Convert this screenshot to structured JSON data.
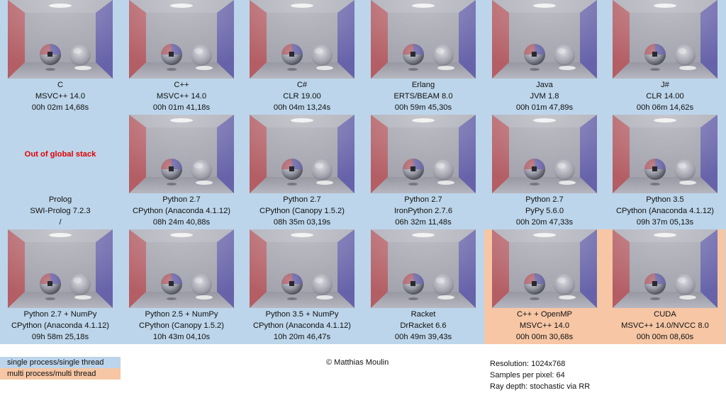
{
  "renders": [
    {
      "lines": [
        "C",
        "MSVC++ 14.0",
        "00h 02m 14,68s"
      ],
      "group": "single",
      "image": true
    },
    {
      "lines": [
        "C++",
        "MSVC++ 14.0",
        "00h 01m 41,18s"
      ],
      "group": "single",
      "image": true
    },
    {
      "lines": [
        "C#",
        "CLR 19.00",
        "00h 04m 13,24s"
      ],
      "group": "single",
      "image": true
    },
    {
      "lines": [
        "Erlang",
        "ERTS/BEAM 8.0",
        "00h 59m 45,30s"
      ],
      "group": "single",
      "image": true
    },
    {
      "lines": [
        "Java",
        "JVM 1.8",
        "00h 01m 47,89s"
      ],
      "group": "single",
      "image": true
    },
    {
      "lines": [
        "J#",
        "CLR 14.00",
        "00h 06m 14,62s"
      ],
      "group": "single",
      "image": true
    },
    {
      "lines": [
        "Prolog",
        "SWI-Prolog 7.2.3",
        "/"
      ],
      "group": "single",
      "image": false,
      "error": "Out of global stack"
    },
    {
      "lines": [
        "Python 2.7",
        "CPython (Anaconda 4.1.12)",
        "08h 24m 40,88s"
      ],
      "group": "single",
      "image": true
    },
    {
      "lines": [
        "Python 2.7",
        "CPython (Canopy 1.5.2)",
        "08h 35m 03,19s"
      ],
      "group": "single",
      "image": true
    },
    {
      "lines": [
        "Python 2.7",
        "IronPython 2.7.6",
        "06h 32m 11,48s"
      ],
      "group": "single",
      "image": true
    },
    {
      "lines": [
        "Python 2.7",
        "PyPy 5.6.0",
        "00h 20m 47,33s"
      ],
      "group": "single",
      "image": true
    },
    {
      "lines": [
        "Python 3.5",
        "CPython (Anaconda 4.1.12)",
        "09h 37m 05,13s"
      ],
      "group": "single",
      "image": true
    },
    {
      "lines": [
        "Python 2.7 + NumPy",
        "CPython (Anaconda 4.1.12)",
        "09h 58m 25,18s"
      ],
      "group": "single",
      "image": true
    },
    {
      "lines": [
        "Python 2.5 + NumPy",
        "CPython (Canopy 1.5.2)",
        "10h 43m 04,10s"
      ],
      "group": "single",
      "image": true
    },
    {
      "lines": [
        "Python 3.5 + NumPy",
        "CPython (Anaconda 4.1.12)",
        "10h 20m 46,47s"
      ],
      "group": "single",
      "image": true
    },
    {
      "lines": [
        "Racket",
        "DrRacket 6.6",
        "00h 49m 39,43s"
      ],
      "group": "single",
      "image": true
    },
    {
      "lines": [
        "C++ + OpenMP",
        "MSVC++ 14.0",
        "00h 00m 30,68s"
      ],
      "group": "multi",
      "image": true
    },
    {
      "lines": [
        "CUDA",
        "MSVC++ 14.0/NVCC 8.0",
        "00h 00m 08,60s"
      ],
      "group": "multi",
      "image": true
    }
  ],
  "legend": {
    "single": "single process/single thread",
    "multi": "multi process/multi thread"
  },
  "copyright": "© Matthias Moulin",
  "settings": [
    "Resolution: 1024x768",
    "Samples per pixel: 64",
    "Ray depth: stochastic via RR"
  ],
  "colors": {
    "single": "#bcd5ea",
    "multi": "#f6c6a5",
    "error": "#e00000"
  },
  "icons": {
    "render": "cornell-box-render-image"
  }
}
